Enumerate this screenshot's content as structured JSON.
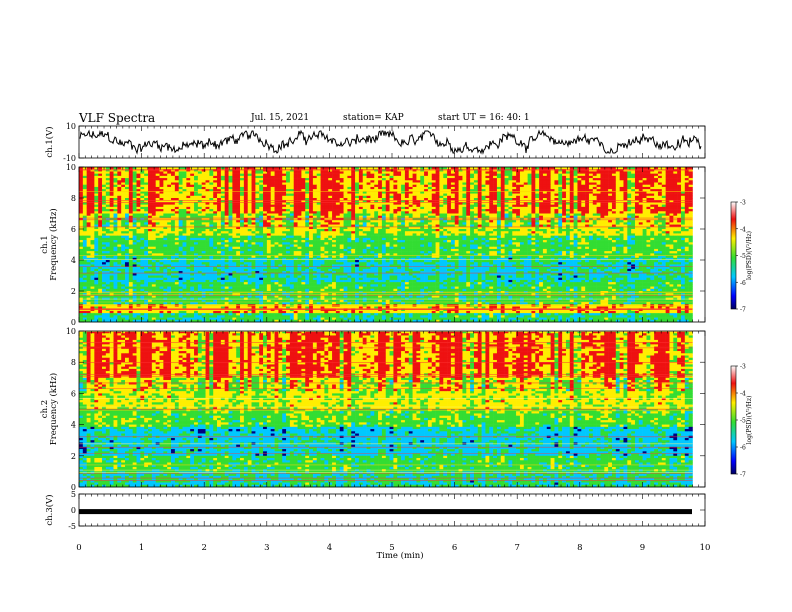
{
  "header": {
    "title": "VLF Spectra",
    "date": "Jul. 15, 2021",
    "station": "station= KAP",
    "start": "start UT =  16: 40: 1"
  },
  "chart_data": [
    {
      "type": "line",
      "panel": "channel-1-waveform",
      "ylabel": "ch.1(V)",
      "ylim": [
        -10,
        10
      ],
      "yticks": [
        "10",
        "-10"
      ],
      "xlim": [
        0,
        10
      ],
      "color": "#000000"
    },
    {
      "type": "heatmap",
      "panel": "channel-1-spectrogram",
      "ylabel": "ch.1 Frequency (kHz)",
      "ylim": [
        0,
        10
      ],
      "yticks": [
        "0",
        "2",
        "4",
        "6",
        "8",
        "10"
      ],
      "xlim": [
        0,
        10
      ],
      "data_extent_x_min": 9.8,
      "colorbar": {
        "label": "log(PSD)(V²/Hz)",
        "range": [
          -7,
          -3
        ],
        "ticks": [
          "-3",
          "-4",
          "-5",
          "-6",
          "-7"
        ]
      }
    },
    {
      "type": "heatmap",
      "panel": "channel-2-spectrogram",
      "ylabel": "ch.2 Frequency (kHz)",
      "ylim": [
        0,
        10
      ],
      "yticks": [
        "0",
        "2",
        "4",
        "6",
        "8",
        "10"
      ],
      "xlim": [
        0,
        10
      ],
      "data_extent_x_min": 9.8,
      "colorbar": {
        "label": "log(PSD)(V²/Hz)",
        "range": [
          -7,
          -3
        ],
        "ticks": [
          "-3",
          "-4",
          "-5",
          "-6",
          "-7"
        ]
      }
    },
    {
      "type": "line",
      "panel": "channel-3-waveform",
      "ylabel": "ch.3(V)",
      "ylim": [
        -5,
        5
      ],
      "yticks": [
        "5",
        "0",
        "-5"
      ],
      "xlim": [
        0,
        10
      ],
      "level": -0.5,
      "color": "#000000"
    }
  ],
  "xaxis": {
    "label": "Time (min)",
    "ticks": [
      "0",
      "1",
      "2",
      "3",
      "4",
      "5",
      "6",
      "7",
      "8",
      "9",
      "10"
    ]
  },
  "spectrogram_colors": {
    "low": "#00007f",
    "mid_low": "#00c8ff",
    "mid": "#33dd33",
    "mid_high": "#ffee00",
    "high": "#ee1111"
  }
}
